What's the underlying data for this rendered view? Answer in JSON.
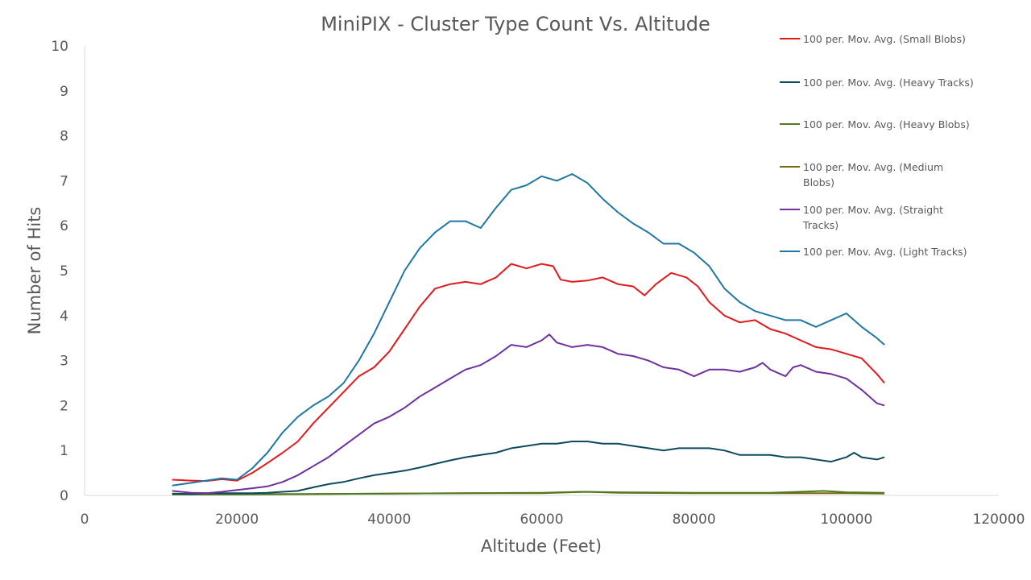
{
  "chart_data": {
    "type": "line",
    "title": "MiniPIX - Cluster Type Count Vs. Altitude",
    "xlabel": "Altitude (Feet)",
    "ylabel": "Number of Hits",
    "xlim": [
      0,
      120000
    ],
    "ylim": [
      0,
      10
    ],
    "xticks": [
      "0",
      "20000",
      "40000",
      "60000",
      "80000",
      "100000",
      "120000"
    ],
    "yticks": [
      "0",
      "1",
      "2",
      "3",
      "4",
      "5",
      "6",
      "7",
      "8",
      "9",
      "10"
    ],
    "grid": false,
    "legend_position": "right",
    "series": [
      {
        "name": "100 per. Mov. Avg. (Small Blobs)",
        "legend_lines": [
          "100 per. Mov. Avg. (Small Blobs)"
        ],
        "color": "#e31a1c",
        "points": [
          [
            11500,
            0.35
          ],
          [
            14000,
            0.33
          ],
          [
            16000,
            0.32
          ],
          [
            18000,
            0.36
          ],
          [
            20000,
            0.33
          ],
          [
            22000,
            0.5
          ],
          [
            24000,
            0.72
          ],
          [
            26000,
            0.95
          ],
          [
            28000,
            1.2
          ],
          [
            30000,
            1.6
          ],
          [
            32000,
            1.95
          ],
          [
            34000,
            2.3
          ],
          [
            36000,
            2.65
          ],
          [
            38000,
            2.85
          ],
          [
            40000,
            3.2
          ],
          [
            42000,
            3.7
          ],
          [
            44000,
            4.2
          ],
          [
            46000,
            4.6
          ],
          [
            48000,
            4.7
          ],
          [
            50000,
            4.75
          ],
          [
            52000,
            4.7
          ],
          [
            54000,
            4.85
          ],
          [
            56000,
            5.15
          ],
          [
            58000,
            5.05
          ],
          [
            60000,
            5.15
          ],
          [
            61500,
            5.1
          ],
          [
            62500,
            4.8
          ],
          [
            64000,
            4.75
          ],
          [
            66000,
            4.78
          ],
          [
            68000,
            4.85
          ],
          [
            70000,
            4.7
          ],
          [
            72000,
            4.65
          ],
          [
            73500,
            4.45
          ],
          [
            75000,
            4.7
          ],
          [
            77000,
            4.95
          ],
          [
            79000,
            4.85
          ],
          [
            80500,
            4.65
          ],
          [
            82000,
            4.3
          ],
          [
            84000,
            4.0
          ],
          [
            86000,
            3.85
          ],
          [
            88000,
            3.9
          ],
          [
            90000,
            3.7
          ],
          [
            92000,
            3.6
          ],
          [
            94000,
            3.45
          ],
          [
            96000,
            3.3
          ],
          [
            98000,
            3.25
          ],
          [
            100000,
            3.15
          ],
          [
            102000,
            3.05
          ],
          [
            104000,
            2.7
          ],
          [
            105000,
            2.5
          ]
        ]
      },
      {
        "name": "100 per. Mov. Avg. (Heavy Tracks)",
        "legend_lines": [
          "100 per. Mov. Avg. (Heavy Tracks)"
        ],
        "color": "#0d4a5e",
        "points": [
          [
            11500,
            0.04
          ],
          [
            14000,
            0.03
          ],
          [
            16000,
            0.05
          ],
          [
            18000,
            0.05
          ],
          [
            20000,
            0.05
          ],
          [
            22000,
            0.05
          ],
          [
            24000,
            0.06
          ],
          [
            26000,
            0.08
          ],
          [
            28000,
            0.1
          ],
          [
            30000,
            0.18
          ],
          [
            32000,
            0.25
          ],
          [
            34000,
            0.3
          ],
          [
            36000,
            0.38
          ],
          [
            38000,
            0.45
          ],
          [
            40000,
            0.5
          ],
          [
            42000,
            0.55
          ],
          [
            44000,
            0.62
          ],
          [
            46000,
            0.7
          ],
          [
            48000,
            0.78
          ],
          [
            50000,
            0.85
          ],
          [
            52000,
            0.9
          ],
          [
            54000,
            0.95
          ],
          [
            56000,
            1.05
          ],
          [
            58000,
            1.1
          ],
          [
            60000,
            1.15
          ],
          [
            62000,
            1.15
          ],
          [
            64000,
            1.2
          ],
          [
            66000,
            1.2
          ],
          [
            68000,
            1.15
          ],
          [
            70000,
            1.15
          ],
          [
            72000,
            1.1
          ],
          [
            74000,
            1.05
          ],
          [
            76000,
            1.0
          ],
          [
            78000,
            1.05
          ],
          [
            80000,
            1.05
          ],
          [
            82000,
            1.05
          ],
          [
            84000,
            1.0
          ],
          [
            86000,
            0.9
          ],
          [
            88000,
            0.9
          ],
          [
            90000,
            0.9
          ],
          [
            92000,
            0.85
          ],
          [
            94000,
            0.85
          ],
          [
            96000,
            0.8
          ],
          [
            98000,
            0.75
          ],
          [
            100000,
            0.85
          ],
          [
            101000,
            0.95
          ],
          [
            102000,
            0.85
          ],
          [
            104000,
            0.8
          ],
          [
            105000,
            0.85
          ]
        ]
      },
      {
        "name": "100 per. Mov. Avg. (Heavy Blobs)",
        "legend_lines": [
          "100 per. Mov. Avg. (Heavy Blobs)"
        ],
        "color": "#4e7a1e",
        "points": [
          [
            11500,
            0.02
          ],
          [
            20000,
            0.02
          ],
          [
            30000,
            0.03
          ],
          [
            40000,
            0.04
          ],
          [
            50000,
            0.05
          ],
          [
            60000,
            0.06
          ],
          [
            65000,
            0.08
          ],
          [
            70000,
            0.07
          ],
          [
            80000,
            0.06
          ],
          [
            90000,
            0.06
          ],
          [
            97000,
            0.1
          ],
          [
            100000,
            0.07
          ],
          [
            105000,
            0.06
          ]
        ]
      },
      {
        "name": "100 per. Mov. Avg. (Medium Blobs)",
        "legend_lines": [
          "100 per. Mov. Avg. (Medium",
          "Blobs)"
        ],
        "color": "#7a6510",
        "points": [
          [
            11500,
            0.03
          ],
          [
            20000,
            0.03
          ],
          [
            30000,
            0.03
          ],
          [
            40000,
            0.04
          ],
          [
            50000,
            0.05
          ],
          [
            60000,
            0.05
          ],
          [
            66000,
            0.08
          ],
          [
            70000,
            0.06
          ],
          [
            80000,
            0.05
          ],
          [
            90000,
            0.05
          ],
          [
            100000,
            0.05
          ],
          [
            105000,
            0.04
          ]
        ]
      },
      {
        "name": "100 per. Mov. Avg. (Straight Tracks)",
        "legend_lines": [
          "100 per. Mov. Avg. (Straight",
          "Tracks)"
        ],
        "color": "#7030a0",
        "points": [
          [
            11500,
            0.1
          ],
          [
            14000,
            0.06
          ],
          [
            16000,
            0.05
          ],
          [
            18000,
            0.08
          ],
          [
            20000,
            0.12
          ],
          [
            22000,
            0.16
          ],
          [
            24000,
            0.2
          ],
          [
            26000,
            0.3
          ],
          [
            28000,
            0.45
          ],
          [
            30000,
            0.65
          ],
          [
            32000,
            0.85
          ],
          [
            34000,
            1.1
          ],
          [
            36000,
            1.35
          ],
          [
            38000,
            1.6
          ],
          [
            40000,
            1.75
          ],
          [
            42000,
            1.95
          ],
          [
            44000,
            2.2
          ],
          [
            46000,
            2.4
          ],
          [
            48000,
            2.6
          ],
          [
            50000,
            2.8
          ],
          [
            52000,
            2.9
          ],
          [
            54000,
            3.1
          ],
          [
            56000,
            3.35
          ],
          [
            58000,
            3.3
          ],
          [
            60000,
            3.45
          ],
          [
            61000,
            3.58
          ],
          [
            62000,
            3.4
          ],
          [
            64000,
            3.3
          ],
          [
            66000,
            3.35
          ],
          [
            68000,
            3.3
          ],
          [
            70000,
            3.15
          ],
          [
            72000,
            3.1
          ],
          [
            74000,
            3.0
          ],
          [
            76000,
            2.85
          ],
          [
            78000,
            2.8
          ],
          [
            80000,
            2.65
          ],
          [
            82000,
            2.8
          ],
          [
            84000,
            2.8
          ],
          [
            86000,
            2.75
          ],
          [
            88000,
            2.85
          ],
          [
            89000,
            2.95
          ],
          [
            90000,
            2.8
          ],
          [
            92000,
            2.65
          ],
          [
            93000,
            2.85
          ],
          [
            94000,
            2.9
          ],
          [
            96000,
            2.75
          ],
          [
            98000,
            2.7
          ],
          [
            100000,
            2.6
          ],
          [
            102000,
            2.35
          ],
          [
            104000,
            2.05
          ],
          [
            105000,
            2.0
          ]
        ]
      },
      {
        "name": "100 per. Mov. Avg. (Light Tracks)",
        "legend_lines": [
          "100 per. Mov. Avg. (Light Tracks)"
        ],
        "color": "#1f77a4",
        "points": [
          [
            11500,
            0.22
          ],
          [
            14000,
            0.28
          ],
          [
            16000,
            0.33
          ],
          [
            18000,
            0.38
          ],
          [
            20000,
            0.35
          ],
          [
            22000,
            0.6
          ],
          [
            24000,
            0.95
          ],
          [
            26000,
            1.4
          ],
          [
            28000,
            1.75
          ],
          [
            30000,
            2.0
          ],
          [
            32000,
            2.2
          ],
          [
            34000,
            2.5
          ],
          [
            36000,
            3.0
          ],
          [
            38000,
            3.6
          ],
          [
            40000,
            4.3
          ],
          [
            42000,
            5.0
          ],
          [
            44000,
            5.5
          ],
          [
            46000,
            5.85
          ],
          [
            48000,
            6.1
          ],
          [
            50000,
            6.1
          ],
          [
            52000,
            5.95
          ],
          [
            54000,
            6.4
          ],
          [
            56000,
            6.8
          ],
          [
            58000,
            6.9
          ],
          [
            60000,
            7.1
          ],
          [
            62000,
            7.0
          ],
          [
            64000,
            7.15
          ],
          [
            66000,
            6.95
          ],
          [
            68000,
            6.6
          ],
          [
            70000,
            6.3
          ],
          [
            72000,
            6.05
          ],
          [
            74000,
            5.85
          ],
          [
            76000,
            5.6
          ],
          [
            78000,
            5.6
          ],
          [
            80000,
            5.4
          ],
          [
            82000,
            5.1
          ],
          [
            84000,
            4.6
          ],
          [
            86000,
            4.3
          ],
          [
            88000,
            4.1
          ],
          [
            90000,
            4.0
          ],
          [
            92000,
            3.9
          ],
          [
            94000,
            3.9
          ],
          [
            96000,
            3.75
          ],
          [
            98000,
            3.9
          ],
          [
            100000,
            4.05
          ],
          [
            102000,
            3.75
          ],
          [
            104000,
            3.5
          ],
          [
            105000,
            3.35
          ]
        ]
      }
    ]
  }
}
